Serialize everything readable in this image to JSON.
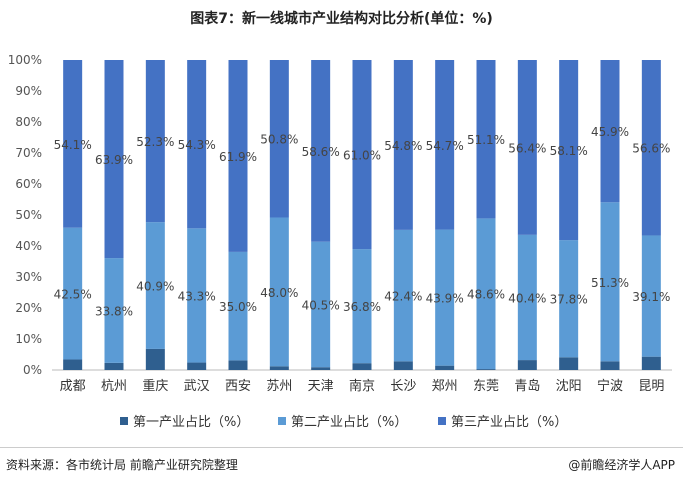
{
  "chart_data": {
    "type": "bar",
    "stacked": true,
    "title": "图表7：新一线城市产业结构对比分析(单位：%)",
    "categories": [
      "成都",
      "杭州",
      "重庆",
      "武汉",
      "西安",
      "苏州",
      "天津",
      "南京",
      "长沙",
      "郑州",
      "东莞",
      "青岛",
      "沈阳",
      "宁波",
      "昆明"
    ],
    "series": [
      {
        "name": "第一产业占比（%）",
        "color": "#2f5f8f",
        "values": [
          3.4,
          2.3,
          6.8,
          2.4,
          3.1,
          1.2,
          0.9,
          2.2,
          2.8,
          1.4,
          0.3,
          3.2,
          4.1,
          2.8,
          4.3
        ]
      },
      {
        "name": "第二产业占比（%）",
        "color": "#5b9bd5",
        "values": [
          42.5,
          33.8,
          40.9,
          43.3,
          35.0,
          48.0,
          40.5,
          36.8,
          42.4,
          43.9,
          48.6,
          40.4,
          37.8,
          51.3,
          39.1
        ]
      },
      {
        "name": "第三产业占比（%）",
        "color": "#4472c4",
        "values": [
          54.1,
          63.9,
          52.3,
          54.3,
          61.9,
          50.8,
          58.6,
          61.0,
          54.8,
          54.7,
          51.1,
          56.4,
          58.1,
          45.9,
          56.6
        ]
      }
    ],
    "data_labels": {
      "series_labeled": [
        "第二产业占比（%）",
        "第三产业占比（%）"
      ],
      "suffix": "%"
    },
    "yticks": [
      "0%",
      "10%",
      "20%",
      "30%",
      "40%",
      "50%",
      "60%",
      "70%",
      "80%",
      "90%",
      "100%"
    ],
    "ylim": [
      0,
      100
    ],
    "xlabel": "",
    "ylabel": "",
    "legend": "bottom",
    "grid": false
  },
  "footer": {
    "source": "资料来源：各市统计局 前瞻产业研究院整理",
    "brand": "@前瞻经济学人APP"
  }
}
